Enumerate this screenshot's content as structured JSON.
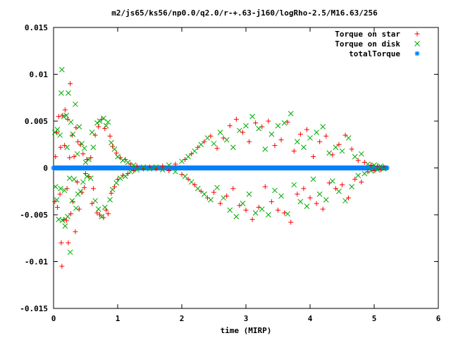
{
  "chart_data": {
    "type": "scatter",
    "title": "m2/js65/ks56/np0.0/q2.0/r-+.63-j160/logRho-2.5/M16.63/256",
    "xlabel": "time (MIRP)",
    "ylabel": "",
    "xlim": [
      0,
      6
    ],
    "ylim": [
      -0.015,
      0.015
    ],
    "x_ticks": [
      "0",
      "1",
      "2",
      "3",
      "4",
      "5",
      "6"
    ],
    "x_tick_values": [
      0,
      1,
      2,
      3,
      4,
      5,
      6
    ],
    "y_ticks": [
      "0.015",
      "0.01",
      "0.005",
      "0",
      "-0.005",
      "-0.01",
      "-0.015"
    ],
    "y_tick_values": [
      0.015,
      0.01,
      0.005,
      0,
      -0.005,
      -0.01,
      -0.015
    ],
    "grid": false,
    "legend_position": "top-right",
    "series": [
      {
        "name": "Torque on star",
        "marker": "plus",
        "color": "#ff0000",
        "points": [
          [
            0.02,
            -0.0036
          ],
          [
            0.03,
            0.0012
          ],
          [
            0.05,
            0.0038
          ],
          [
            0.06,
            -0.0042
          ],
          [
            0.08,
            0.0055
          ],
          [
            0.1,
            -0.0028
          ],
          [
            0.11,
            0.0022
          ],
          [
            0.12,
            -0.008
          ],
          [
            0.13,
            -0.0105
          ],
          [
            0.14,
            0.0056
          ],
          [
            0.16,
            -0.0055
          ],
          [
            0.17,
            0.0024
          ],
          [
            0.18,
            0.0062
          ],
          [
            0.2,
            -0.0056
          ],
          [
            0.21,
            -0.0022
          ],
          [
            0.22,
            0.0052
          ],
          [
            0.23,
            -0.008
          ],
          [
            0.25,
            0.0011
          ],
          [
            0.26,
            0.009
          ],
          [
            0.27,
            -0.0049
          ],
          [
            0.29,
            0.0035
          ],
          [
            0.3,
            -0.0036
          ],
          [
            0.32,
            0.0012
          ],
          [
            0.34,
            -0.0068
          ],
          [
            0.35,
            0.0043
          ],
          [
            0.37,
            -0.0015
          ],
          [
            0.38,
            0.0028
          ],
          [
            0.4,
            -0.0044
          ],
          [
            0.42,
            0.0025
          ],
          [
            0.44,
            -0.0026
          ],
          [
            0.46,
            0.0015
          ],
          [
            0.48,
            -0.0021
          ],
          [
            0.5,
            -0.0006
          ],
          [
            0.52,
            0.0009
          ],
          [
            0.55,
            -0.0009
          ],
          [
            0.58,
            0.0011
          ],
          [
            0.6,
            -0.0038
          ],
          [
            0.62,
            -0.0022
          ],
          [
            0.65,
            0.0035
          ],
          [
            0.68,
            -0.0048
          ],
          [
            0.7,
            0.0044
          ],
          [
            0.72,
            -0.005
          ],
          [
            0.75,
            0.0052
          ],
          [
            0.78,
            -0.0053
          ],
          [
            0.8,
            0.0042
          ],
          [
            0.82,
            -0.0045
          ],
          [
            0.85,
            -0.0049
          ],
          [
            0.88,
            0.0034
          ],
          [
            0.9,
            -0.0027
          ],
          [
            0.92,
            0.0023
          ],
          [
            0.95,
            -0.002
          ],
          [
            0.98,
            0.0016
          ],
          [
            1.0,
            -0.0012
          ],
          [
            1.04,
            0.0011
          ],
          [
            1.08,
            -0.0008
          ],
          [
            1.12,
            0.0009
          ],
          [
            1.16,
            -0.0006
          ],
          [
            1.2,
            0.0004
          ],
          [
            1.25,
            -0.0003
          ],
          [
            1.3,
            0.0002
          ],
          [
            1.4,
            -0.0001
          ],
          [
            1.5,
            0.0001
          ],
          [
            1.6,
            -0.0001
          ],
          [
            1.7,
            0.0002
          ],
          [
            1.8,
            -0.0003
          ],
          [
            1.9,
            0.0004
          ],
          [
            2.0,
            -0.0007
          ],
          [
            2.05,
            0.0009
          ],
          [
            2.1,
            -0.0012
          ],
          [
            2.15,
            0.0015
          ],
          [
            2.2,
            -0.0018
          ],
          [
            2.25,
            0.0022
          ],
          [
            2.3,
            -0.0025
          ],
          [
            2.35,
            0.0028
          ],
          [
            2.4,
            -0.0032
          ],
          [
            2.45,
            0.0034
          ],
          [
            2.5,
            -0.0026
          ],
          [
            2.55,
            0.0021
          ],
          [
            2.6,
            -0.0038
          ],
          [
            2.65,
            0.0032
          ],
          [
            2.7,
            -0.003
          ],
          [
            2.75,
            0.0045
          ],
          [
            2.8,
            -0.0022
          ],
          [
            2.85,
            0.0052
          ],
          [
            2.9,
            -0.004
          ],
          [
            2.95,
            0.0038
          ],
          [
            3.0,
            -0.0045
          ],
          [
            3.05,
            0.0028
          ],
          [
            3.1,
            -0.0055
          ],
          [
            3.15,
            0.0048
          ],
          [
            3.2,
            -0.0042
          ],
          [
            3.25,
            0.0044
          ],
          [
            3.3,
            -0.002
          ],
          [
            3.35,
            0.005
          ],
          [
            3.4,
            -0.0036
          ],
          [
            3.45,
            0.0024
          ],
          [
            3.5,
            -0.0045
          ],
          [
            3.55,
            0.003
          ],
          [
            3.6,
            -0.0048
          ],
          [
            3.65,
            0.0049
          ],
          [
            3.7,
            -0.0058
          ],
          [
            3.75,
            0.0018
          ],
          [
            3.8,
            -0.0028
          ],
          [
            3.85,
            0.0036
          ],
          [
            3.9,
            -0.0022
          ],
          [
            3.95,
            0.0041
          ],
          [
            4.0,
            -0.0032
          ],
          [
            4.05,
            0.0012
          ],
          [
            4.1,
            -0.0038
          ],
          [
            4.15,
            0.0028
          ],
          [
            4.2,
            -0.0044
          ],
          [
            4.25,
            0.0034
          ],
          [
            4.3,
            -0.0016
          ],
          [
            4.35,
            0.0014
          ],
          [
            4.4,
            -0.0022
          ],
          [
            4.45,
            0.0025
          ],
          [
            4.5,
            -0.0018
          ],
          [
            4.55,
            0.0035
          ],
          [
            4.6,
            -0.0032
          ],
          [
            4.65,
            0.002
          ],
          [
            4.7,
            -0.0012
          ],
          [
            4.75,
            0.0008
          ],
          [
            4.8,
            -0.0015
          ],
          [
            4.85,
            0.0006
          ],
          [
            4.9,
            -0.0004
          ],
          [
            4.95,
            0.0003
          ],
          [
            5.0,
            -0.0003
          ],
          [
            5.05,
            0.0002
          ],
          [
            5.1,
            -0.0002
          ],
          [
            5.15,
            0.0001
          ]
        ]
      },
      {
        "name": "Torque on disk",
        "marker": "cross",
        "color": "#00aa00",
        "points": [
          [
            0.02,
            0.0038
          ],
          [
            0.03,
            -0.002
          ],
          [
            0.05,
            -0.0034
          ],
          [
            0.06,
            0.0041
          ],
          [
            0.08,
            -0.0055
          ],
          [
            0.1,
            0.0035
          ],
          [
            0.11,
            -0.0022
          ],
          [
            0.12,
            0.008
          ],
          [
            0.13,
            0.0105
          ],
          [
            0.14,
            -0.0056
          ],
          [
            0.16,
            0.0055
          ],
          [
            0.17,
            -0.0024
          ],
          [
            0.18,
            -0.0062
          ],
          [
            0.2,
            0.0056
          ],
          [
            0.21,
            0.0022
          ],
          [
            0.22,
            -0.0052
          ],
          [
            0.23,
            0.008
          ],
          [
            0.25,
            -0.0011
          ],
          [
            0.26,
            -0.009
          ],
          [
            0.27,
            0.0049
          ],
          [
            0.29,
            -0.0035
          ],
          [
            0.3,
            0.0036
          ],
          [
            0.32,
            -0.0012
          ],
          [
            0.34,
            0.0068
          ],
          [
            0.35,
            -0.0043
          ],
          [
            0.37,
            0.0015
          ],
          [
            0.38,
            -0.0028
          ],
          [
            0.4,
            0.0044
          ],
          [
            0.42,
            -0.0025
          ],
          [
            0.44,
            0.0026
          ],
          [
            0.46,
            -0.0015
          ],
          [
            0.48,
            0.0021
          ],
          [
            0.5,
            0.0006
          ],
          [
            0.52,
            -0.0009
          ],
          [
            0.55,
            0.0009
          ],
          [
            0.58,
            -0.0011
          ],
          [
            0.6,
            0.0038
          ],
          [
            0.62,
            0.0022
          ],
          [
            0.65,
            -0.0035
          ],
          [
            0.68,
            0.0048
          ],
          [
            0.7,
            -0.0044
          ],
          [
            0.72,
            0.005
          ],
          [
            0.75,
            -0.0052
          ],
          [
            0.78,
            0.0053
          ],
          [
            0.8,
            -0.0042
          ],
          [
            0.82,
            0.0045
          ],
          [
            0.85,
            0.0049
          ],
          [
            0.88,
            -0.0034
          ],
          [
            0.9,
            0.0027
          ],
          [
            0.92,
            -0.0023
          ],
          [
            0.95,
            0.002
          ],
          [
            0.98,
            -0.0016
          ],
          [
            1.0,
            0.0012
          ],
          [
            1.04,
            -0.0011
          ],
          [
            1.08,
            0.0008
          ],
          [
            1.12,
            -0.0009
          ],
          [
            1.16,
            0.0006
          ],
          [
            1.2,
            -0.0004
          ],
          [
            1.25,
            0.0003
          ],
          [
            1.3,
            -0.0002
          ],
          [
            1.4,
            0.0001
          ],
          [
            1.5,
            -0.0001
          ],
          [
            1.6,
            0.0001
          ],
          [
            1.7,
            -0.0002
          ],
          [
            1.8,
            0.0003
          ],
          [
            1.9,
            -0.0004
          ],
          [
            2.0,
            0.0007
          ],
          [
            2.05,
            -0.0009
          ],
          [
            2.1,
            0.0012
          ],
          [
            2.15,
            -0.0015
          ],
          [
            2.2,
            0.0018
          ],
          [
            2.25,
            -0.0022
          ],
          [
            2.3,
            0.0025
          ],
          [
            2.35,
            -0.0028
          ],
          [
            2.4,
            0.0032
          ],
          [
            2.45,
            -0.0034
          ],
          [
            2.5,
            0.0026
          ],
          [
            2.55,
            -0.0021
          ],
          [
            2.6,
            0.0038
          ],
          [
            2.65,
            -0.0032
          ],
          [
            2.7,
            0.003
          ],
          [
            2.75,
            -0.0045
          ],
          [
            2.8,
            0.0022
          ],
          [
            2.85,
            -0.0052
          ],
          [
            2.9,
            0.004
          ],
          [
            2.95,
            -0.0038
          ],
          [
            3.0,
            0.0045
          ],
          [
            3.05,
            -0.0028
          ],
          [
            3.1,
            0.0055
          ],
          [
            3.15,
            -0.0048
          ],
          [
            3.2,
            0.0042
          ],
          [
            3.25,
            -0.0044
          ],
          [
            3.3,
            0.002
          ],
          [
            3.35,
            -0.005
          ],
          [
            3.4,
            0.0036
          ],
          [
            3.45,
            -0.0024
          ],
          [
            3.5,
            0.0045
          ],
          [
            3.55,
            -0.003
          ],
          [
            3.6,
            0.0048
          ],
          [
            3.65,
            -0.0049
          ],
          [
            3.7,
            0.0058
          ],
          [
            3.75,
            -0.0018
          ],
          [
            3.8,
            0.0028
          ],
          [
            3.85,
            -0.0036
          ],
          [
            3.9,
            0.0022
          ],
          [
            3.95,
            -0.0041
          ],
          [
            4.0,
            0.0032
          ],
          [
            4.05,
            -0.0012
          ],
          [
            4.1,
            0.0038
          ],
          [
            4.15,
            -0.0028
          ],
          [
            4.2,
            0.0044
          ],
          [
            4.25,
            -0.0034
          ],
          [
            4.3,
            0.0016
          ],
          [
            4.35,
            -0.0014
          ],
          [
            4.4,
            0.0022
          ],
          [
            4.45,
            -0.0025
          ],
          [
            4.5,
            0.0018
          ],
          [
            4.55,
            -0.0035
          ],
          [
            4.6,
            0.0032
          ],
          [
            4.65,
            -0.002
          ],
          [
            4.7,
            0.0012
          ],
          [
            4.75,
            -0.0008
          ],
          [
            4.8,
            0.0015
          ],
          [
            4.85,
            -0.0006
          ],
          [
            4.9,
            0.0004
          ],
          [
            4.95,
            -0.0003
          ],
          [
            5.0,
            0.0003
          ],
          [
            5.05,
            -0.0002
          ],
          [
            5.1,
            0.0002
          ],
          [
            5.15,
            -0.0001
          ]
        ]
      },
      {
        "name": "totalTorque",
        "marker": "star",
        "color": "#0080ff",
        "x_range": [
          0,
          5.2
        ],
        "y": 0
      }
    ]
  }
}
